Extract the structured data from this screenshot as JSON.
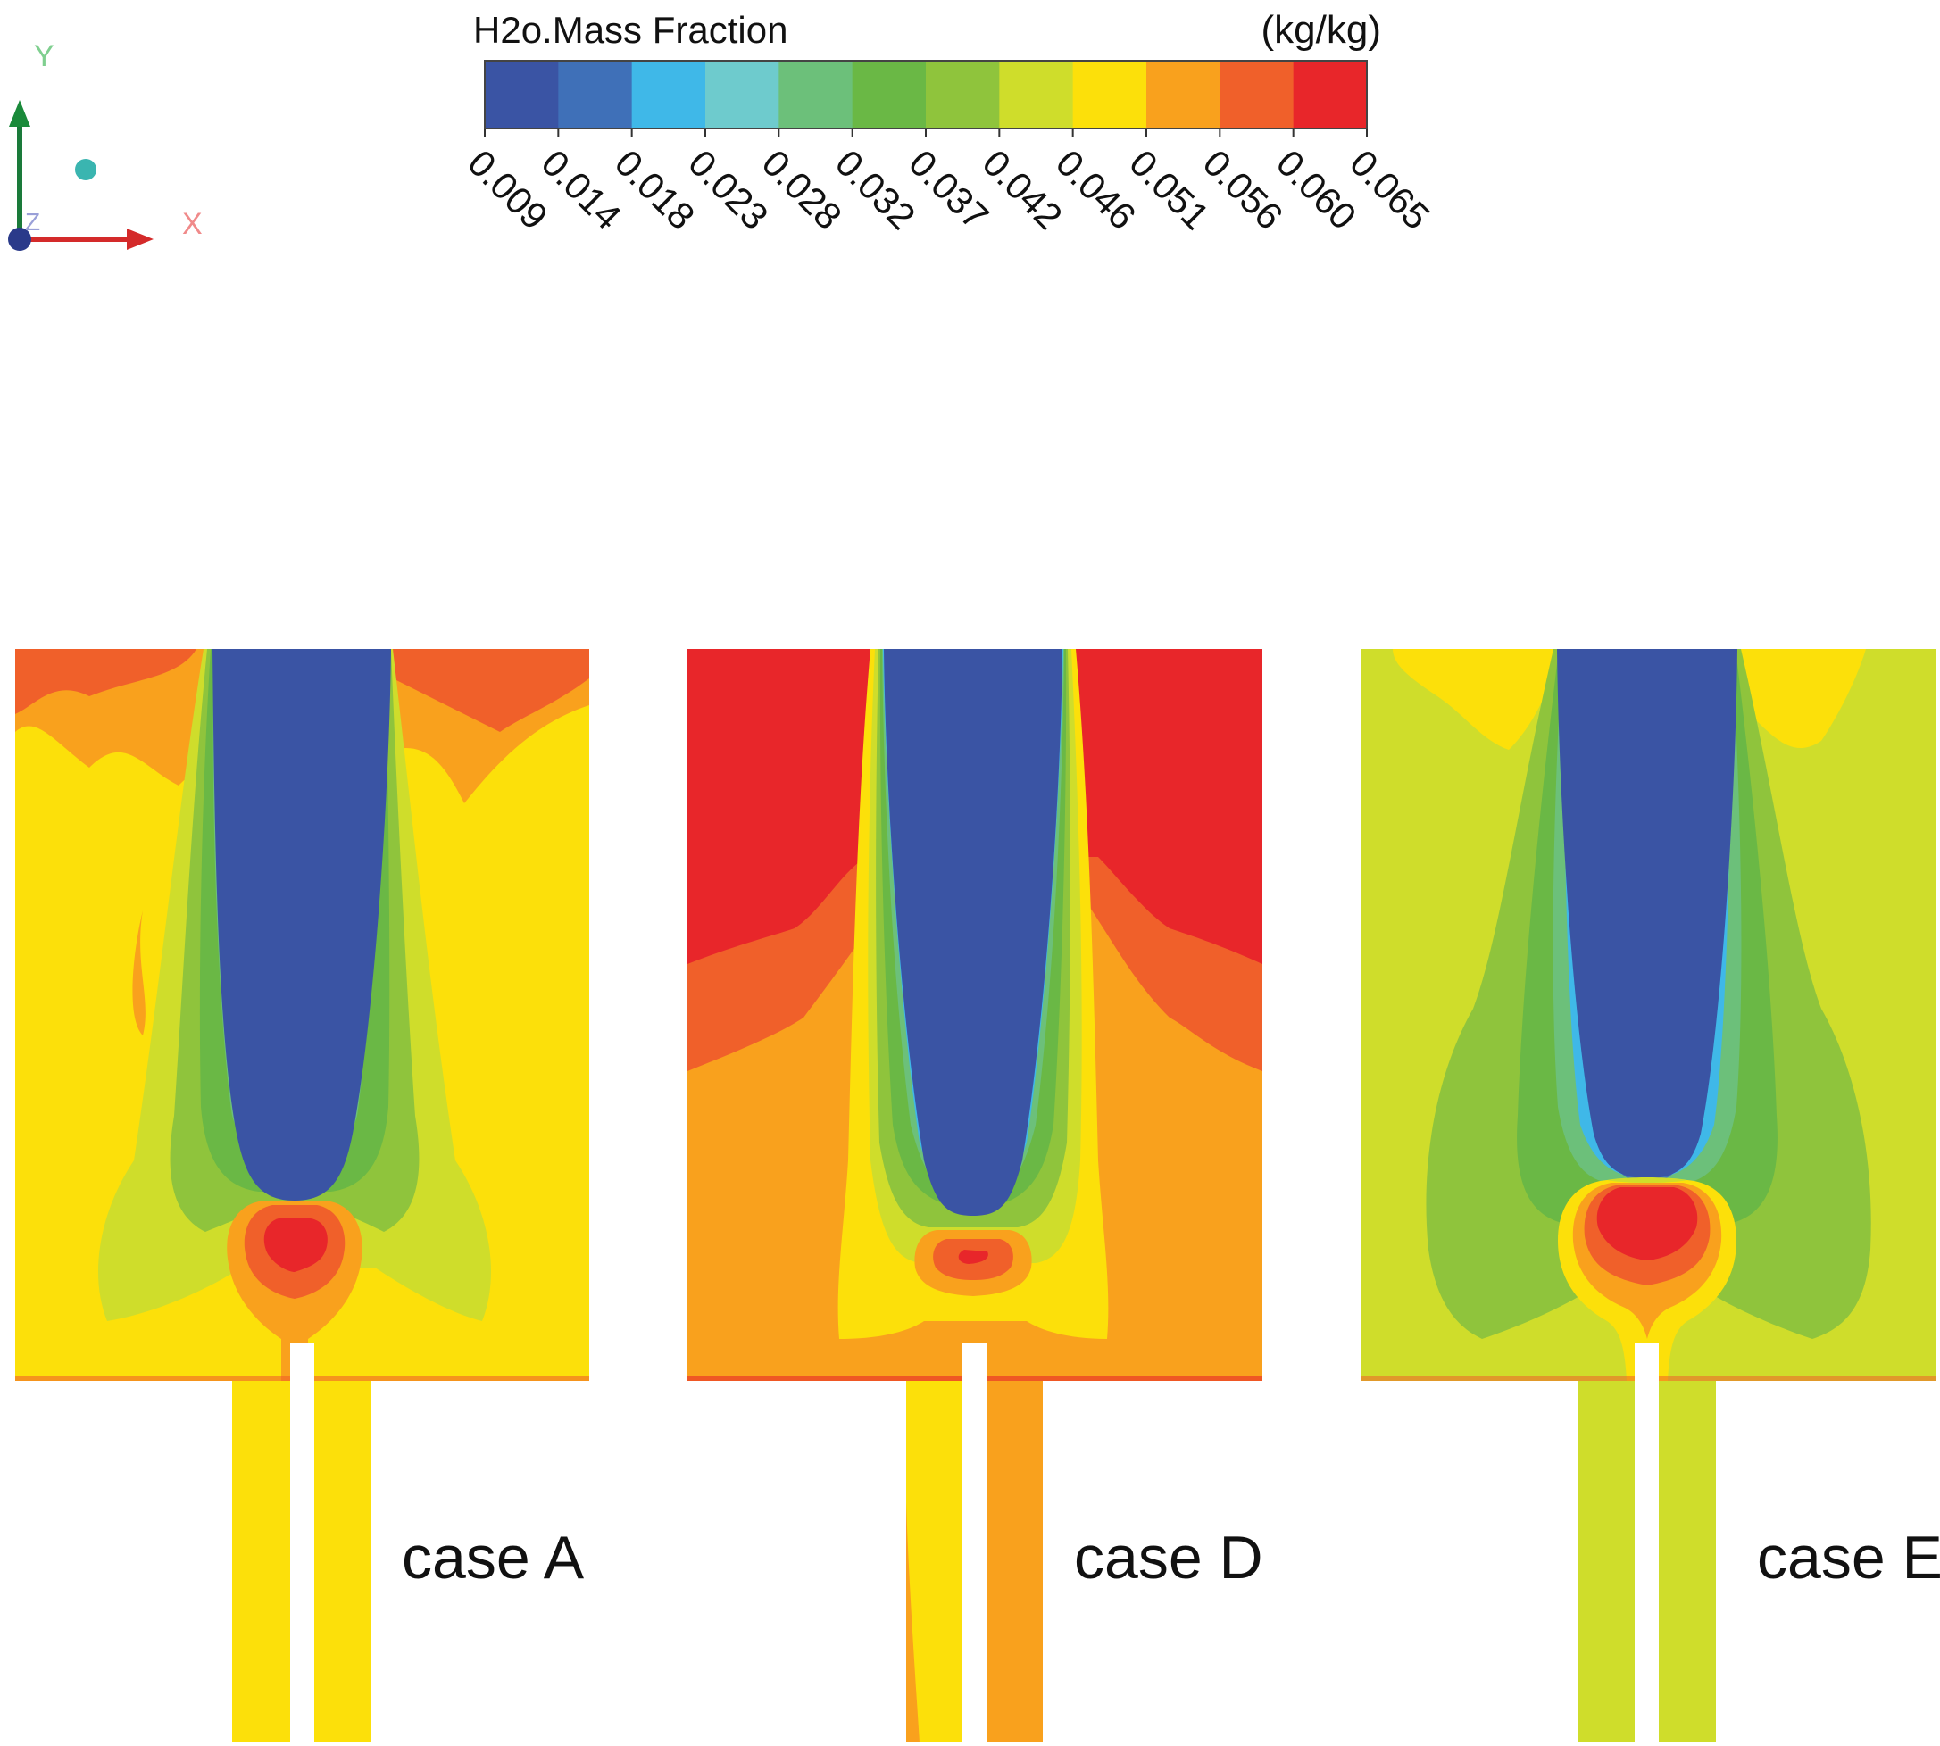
{
  "legend": {
    "title": "H2o.Mass Fraction",
    "unit": "(kg/kg)",
    "ticks": [
      "0.009",
      "0.014",
      "0.018",
      "0.023",
      "0.028",
      "0.032",
      "0.037",
      "0.042",
      "0.046",
      "0.051",
      "0.056",
      "0.060",
      "0.065"
    ],
    "colors": [
      "#3a54a4",
      "#3f70b8",
      "#3fb8e8",
      "#6ecbcd",
      "#6cc07a",
      "#6ab845",
      "#8fc43c",
      "#cfdd2b",
      "#fce00a",
      "#f9a11d",
      "#f0602a",
      "#e8262a"
    ]
  },
  "axes": {
    "y_label": "Y",
    "x_label": "X",
    "z_label": "Z"
  },
  "panels": [
    {
      "id": "A",
      "label": "case A"
    },
    {
      "id": "D",
      "label": "case D"
    },
    {
      "id": "E",
      "label": "case E"
    }
  ]
}
